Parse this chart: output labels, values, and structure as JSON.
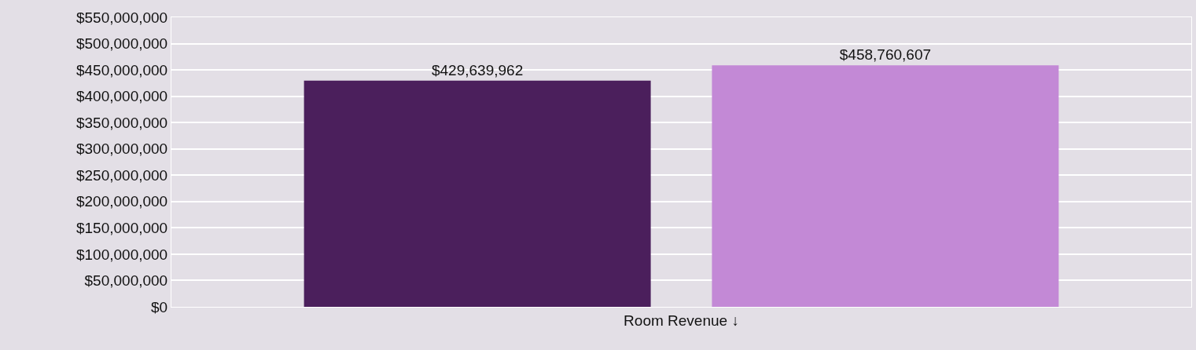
{
  "chart_data": {
    "type": "bar",
    "categories": [
      "Room Revenue ↓"
    ],
    "series": [
      {
        "color": "#4b1f5c",
        "values": [
          429639962
        ],
        "value_labels": [
          "$429,639,962"
        ]
      },
      {
        "color": "#c389d6",
        "values": [
          458760607
        ],
        "value_labels": [
          "$458,760,607"
        ]
      }
    ],
    "ylim": [
      0,
      550000000
    ],
    "yticks": [
      {
        "value": 0,
        "label": "$0"
      },
      {
        "value": 50000000,
        "label": "$50,000,000"
      },
      {
        "value": 100000000,
        "label": "$100,000,000"
      },
      {
        "value": 150000000,
        "label": "$150,000,000"
      },
      {
        "value": 200000000,
        "label": "$200,000,000"
      },
      {
        "value": 250000000,
        "label": "$250,000,000"
      },
      {
        "value": 300000000,
        "label": "$300,000,000"
      },
      {
        "value": 350000000,
        "label": "$350,000,000"
      },
      {
        "value": 400000000,
        "label": "$400,000,000"
      },
      {
        "value": 450000000,
        "label": "$450,000,000"
      },
      {
        "value": 500000000,
        "label": "$500,000,000"
      },
      {
        "value": 550000000,
        "label": "$550,000,000"
      }
    ],
    "grid": "y",
    "legend": false
  }
}
